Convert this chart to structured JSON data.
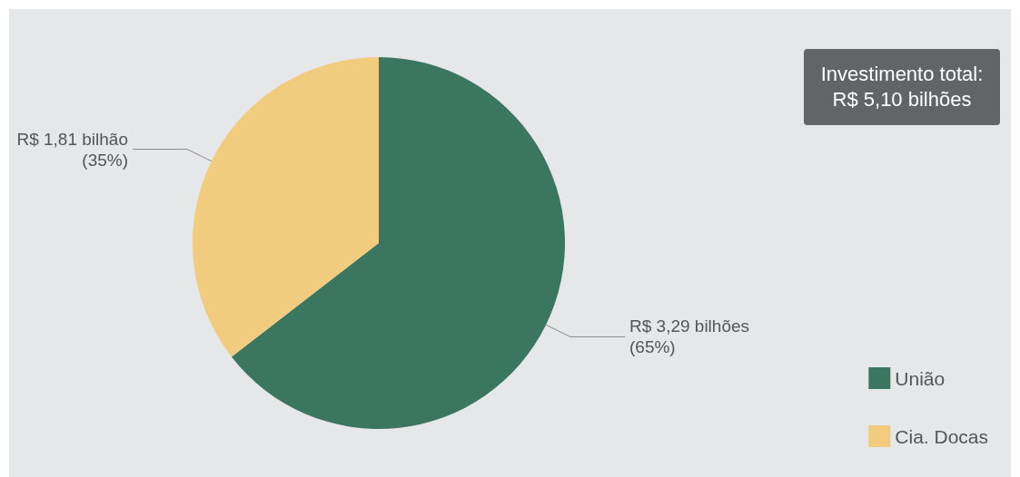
{
  "chart_data": {
    "type": "pie",
    "categories": [
      "União",
      "Cia. Docas"
    ],
    "values": [
      3.29,
      1.81
    ],
    "colors": [
      "#3a7660",
      "#f1cb7e"
    ],
    "value_labels": [
      "R$ 3,29 bilhões\n(65%)",
      "R$ 1,81 bilhão\n(35%)"
    ],
    "annotations": [
      "Investimento total:\nR$ 5,10 bilhões"
    ],
    "legend": "bottom right"
  }
}
